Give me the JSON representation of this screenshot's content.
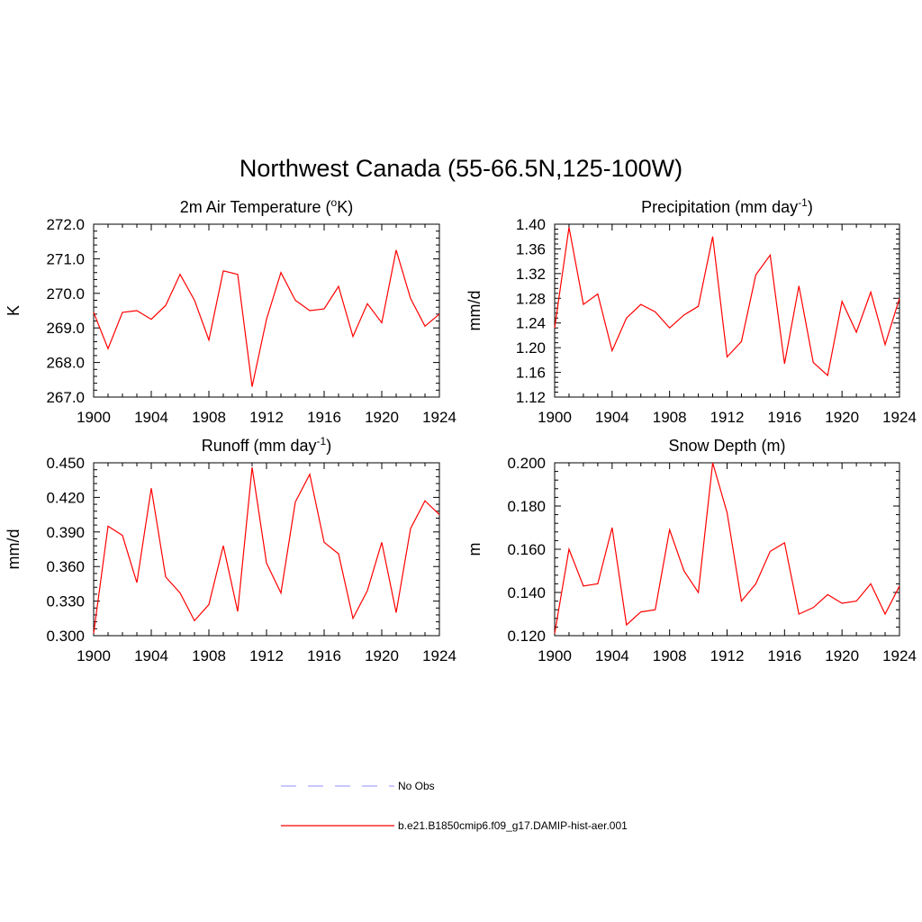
{
  "figure": {
    "title": "Northwest Canada (55-66.5N,125-100W)",
    "line_color": "#ff0000",
    "obs_color": "#a8a8ff"
  },
  "legend": {
    "items": [
      {
        "label": "No Obs",
        "style": "dashed",
        "color": "#a8a8ff"
      },
      {
        "label": "b.e21.B1850cmip6.f09_g17.DAMIP-hist-aer.001",
        "style": "solid",
        "color": "#ff0000"
      }
    ]
  },
  "chart_data": [
    {
      "id": "tas",
      "type": "line",
      "title": "2m Air Temperature (",
      "title_sup": "o",
      "title_after": "K)",
      "ylabel": "K",
      "xlabel": "",
      "xlim": [
        1900,
        1924
      ],
      "ylim": [
        267.0,
        272.0
      ],
      "xticks": [
        "1900",
        "1904",
        "1908",
        "1912",
        "1916",
        "1920",
        "1924"
      ],
      "yticks": [
        "267.0",
        "268.0",
        "269.0",
        "270.0",
        "271.0",
        "272.0"
      ],
      "series": [
        {
          "x": [
            1900,
            1901,
            1902,
            1903,
            1904,
            1905,
            1906,
            1907,
            1908,
            1909,
            1910,
            1911,
            1912,
            1913,
            1914,
            1915,
            1916,
            1917,
            1918,
            1919,
            1920,
            1921,
            1922,
            1923,
            1924
          ],
          "values": [
            269.45,
            268.4,
            269.45,
            269.5,
            269.25,
            269.65,
            270.55,
            269.8,
            268.65,
            270.65,
            270.55,
            267.3,
            269.25,
            270.6,
            269.8,
            269.5,
            269.55,
            270.2,
            268.75,
            269.7,
            269.15,
            271.25,
            269.85,
            269.05,
            269.4
          ]
        }
      ]
    },
    {
      "id": "precip",
      "type": "line",
      "title": "Precipitation (mm day",
      "title_sup": "-1",
      "title_after": ")",
      "ylabel": "mm/d",
      "xlabel": "",
      "xlim": [
        1900,
        1924
      ],
      "ylim": [
        1.12,
        1.4
      ],
      "xticks": [
        "1900",
        "1904",
        "1908",
        "1912",
        "1916",
        "1920",
        "1924"
      ],
      "yticks": [
        "1.12",
        "1.16",
        "1.20",
        "1.24",
        "1.28",
        "1.32",
        "1.36",
        "1.40"
      ],
      "series": [
        {
          "x": [
            1900,
            1901,
            1902,
            1903,
            1904,
            1905,
            1906,
            1907,
            1908,
            1909,
            1910,
            1911,
            1912,
            1913,
            1914,
            1915,
            1916,
            1917,
            1918,
            1919,
            1920,
            1921,
            1922,
            1923,
            1924
          ],
          "values": [
            1.232,
            1.395,
            1.27,
            1.287,
            1.195,
            1.248,
            1.27,
            1.258,
            1.232,
            1.253,
            1.267,
            1.38,
            1.185,
            1.21,
            1.318,
            1.35,
            1.174,
            1.3,
            1.176,
            1.155,
            1.275,
            1.225,
            1.29,
            1.205,
            1.28
          ]
        }
      ]
    },
    {
      "id": "runoff",
      "type": "line",
      "title": "Runoff (mm day",
      "title_sup": "-1",
      "title_after": ")",
      "ylabel": "mm/d",
      "xlabel": "",
      "xlim": [
        1900,
        1924
      ],
      "ylim": [
        0.3,
        0.45
      ],
      "xticks": [
        "1900",
        "1904",
        "1908",
        "1912",
        "1916",
        "1920",
        "1924"
      ],
      "yticks": [
        "0.300",
        "0.330",
        "0.360",
        "0.390",
        "0.420",
        "0.450"
      ],
      "series": [
        {
          "x": [
            1900,
            1901,
            1902,
            1903,
            1904,
            1905,
            1906,
            1907,
            1908,
            1909,
            1910,
            1911,
            1912,
            1913,
            1914,
            1915,
            1916,
            1917,
            1918,
            1919,
            1920,
            1921,
            1922,
            1923,
            1924
          ],
          "values": [
            0.302,
            0.395,
            0.387,
            0.346,
            0.428,
            0.351,
            0.337,
            0.313,
            0.327,
            0.378,
            0.321,
            0.446,
            0.363,
            0.337,
            0.416,
            0.44,
            0.381,
            0.371,
            0.315,
            0.339,
            0.381,
            0.32,
            0.393,
            0.417,
            0.405
          ]
        }
      ]
    },
    {
      "id": "snow",
      "type": "line",
      "title": "Snow Depth (m)",
      "title_sup": "",
      "title_after": "",
      "ylabel": "m",
      "xlabel": "",
      "xlim": [
        1900,
        1924
      ],
      "ylim": [
        0.12,
        0.2
      ],
      "xticks": [
        "1900",
        "1904",
        "1908",
        "1912",
        "1916",
        "1920",
        "1924"
      ],
      "yticks": [
        "0.120",
        "0.140",
        "0.160",
        "0.180",
        "0.200"
      ],
      "series": [
        {
          "x": [
            1900,
            1901,
            1902,
            1903,
            1904,
            1905,
            1906,
            1907,
            1908,
            1909,
            1910,
            1911,
            1912,
            1913,
            1914,
            1915,
            1916,
            1917,
            1918,
            1919,
            1920,
            1921,
            1922,
            1923,
            1924
          ],
          "values": [
            0.121,
            0.16,
            0.143,
            0.144,
            0.17,
            0.125,
            0.131,
            0.132,
            0.169,
            0.15,
            0.14,
            0.2,
            0.177,
            0.136,
            0.144,
            0.159,
            0.163,
            0.13,
            0.133,
            0.139,
            0.135,
            0.136,
            0.144,
            0.13,
            0.143
          ]
        }
      ]
    }
  ]
}
